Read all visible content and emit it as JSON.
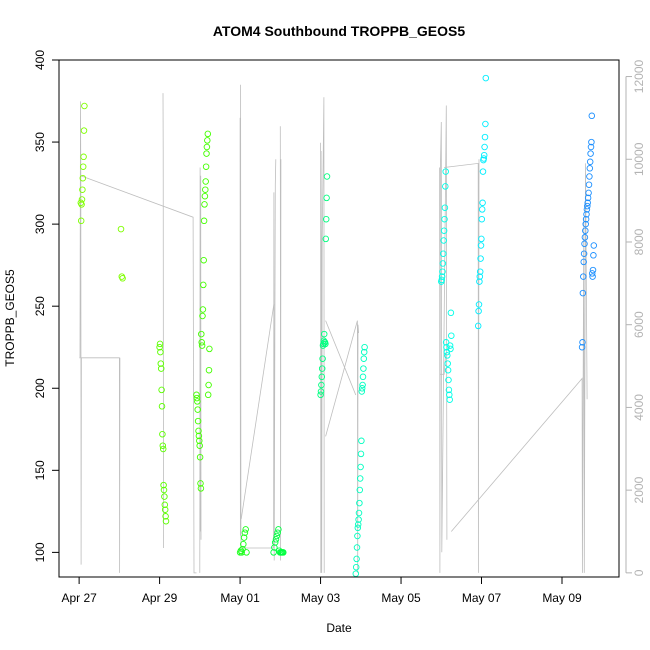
{
  "chart_data": {
    "type": "scatter",
    "title": "ATOM4 Southbound TROPPB_GEOS5",
    "xlabel": "Date",
    "ylabel": "TROPPB_GEOS5",
    "xlim": [
      "2018-04-26T12:00",
      "2018-05-10T10:00"
    ],
    "ylim": [
      85,
      400
    ],
    "y2lim": [
      -100,
      12400
    ],
    "x_ticks": [
      "Apr 27",
      "Apr 29",
      "May 01",
      "May 03",
      "May 05",
      "May 07",
      "May 09"
    ],
    "x_tick_dates": [
      "2018-04-27",
      "2018-04-29",
      "2018-05-01",
      "2018-05-03",
      "2018-05-05",
      "2018-05-07",
      "2018-05-09"
    ],
    "y_ticks": [
      100,
      150,
      200,
      250,
      300,
      350,
      400
    ],
    "y2_ticks": [
      0,
      2000,
      4000,
      6000,
      8000,
      10000,
      12000
    ],
    "y2_axis_color": "#b3b3b3",
    "marker": "open-circle",
    "flights": [
      {
        "date": "2018-04-27T01:00",
        "color": "#7FFF00",
        "points": [
          [
            0.0,
            313
          ],
          [
            0.02,
            312
          ],
          [
            0.03,
            315
          ],
          [
            0.04,
            321
          ],
          [
            0.05,
            328
          ],
          [
            0.06,
            335
          ],
          [
            0.07,
            341
          ],
          [
            0.08,
            357
          ],
          [
            0.09,
            372
          ],
          [
            0.01,
            302
          ],
          [
            1.0,
            297
          ],
          [
            1.02,
            268
          ],
          [
            1.04,
            267
          ]
        ]
      },
      {
        "date": "2018-04-29T00:00",
        "color": "#5CFF00",
        "points": [
          [
            0.0,
            225
          ],
          [
            0.01,
            227
          ],
          [
            0.02,
            222
          ],
          [
            0.03,
            215
          ],
          [
            0.04,
            212
          ],
          [
            0.05,
            199
          ],
          [
            0.06,
            189
          ],
          [
            0.07,
            172
          ],
          [
            0.08,
            165
          ],
          [
            0.09,
            163
          ],
          [
            0.1,
            141
          ],
          [
            0.11,
            138
          ],
          [
            0.12,
            134
          ],
          [
            0.13,
            129
          ],
          [
            0.14,
            126
          ],
          [
            0.15,
            122
          ],
          [
            0.16,
            119
          ]
        ]
      },
      {
        "date": "2018-04-29T22:00",
        "color": "#44FF00",
        "points": [
          [
            0.0,
            196
          ],
          [
            0.01,
            194
          ],
          [
            0.02,
            192
          ],
          [
            0.03,
            187
          ],
          [
            0.04,
            180
          ],
          [
            0.05,
            174
          ],
          [
            0.06,
            171
          ],
          [
            0.07,
            168
          ],
          [
            0.08,
            165
          ],
          [
            0.09,
            158
          ],
          [
            0.1,
            142
          ],
          [
            0.11,
            139
          ],
          [
            0.12,
            233
          ],
          [
            0.13,
            228
          ],
          [
            0.14,
            226
          ],
          [
            0.15,
            244
          ],
          [
            0.16,
            248
          ],
          [
            0.17,
            263
          ],
          [
            0.18,
            278
          ],
          [
            0.19,
            302
          ],
          [
            0.2,
            312
          ],
          [
            0.21,
            317
          ],
          [
            0.22,
            321
          ],
          [
            0.23,
            326
          ],
          [
            0.24,
            335
          ],
          [
            0.25,
            343
          ],
          [
            0.26,
            347
          ],
          [
            0.27,
            351
          ],
          [
            0.28,
            355
          ],
          [
            0.29,
            196
          ],
          [
            0.3,
            202
          ],
          [
            0.31,
            211
          ],
          [
            0.32,
            224
          ]
        ]
      },
      {
        "date": "2018-05-01T00:00",
        "color": "#1AFF1A",
        "points": [
          [
            0.0,
            100
          ],
          [
            0.02,
            101
          ],
          [
            0.04,
            100
          ],
          [
            0.06,
            102
          ],
          [
            0.08,
            105
          ],
          [
            0.1,
            109
          ],
          [
            0.12,
            112
          ],
          [
            0.14,
            114
          ],
          [
            0.16,
            100
          ]
        ]
      },
      {
        "date": "2018-05-01T20:00",
        "color": "#00FF40",
        "points": [
          [
            0.0,
            100
          ],
          [
            0.02,
            103
          ],
          [
            0.04,
            106
          ],
          [
            0.06,
            108
          ],
          [
            0.08,
            110
          ],
          [
            0.1,
            112
          ],
          [
            0.12,
            114
          ],
          [
            0.14,
            101
          ],
          [
            0.16,
            100
          ],
          [
            0.18,
            100
          ],
          [
            0.2,
            100
          ],
          [
            0.22,
            100
          ],
          [
            0.24,
            100
          ]
        ]
      },
      {
        "date": "2018-05-03T00:00",
        "color": "#00FF80",
        "points": [
          [
            0.0,
            196
          ],
          [
            0.01,
            198
          ],
          [
            0.02,
            202
          ],
          [
            0.03,
            207
          ],
          [
            0.04,
            212
          ],
          [
            0.05,
            218
          ],
          [
            0.06,
            226
          ],
          [
            0.07,
            227
          ],
          [
            0.08,
            229
          ],
          [
            0.09,
            233
          ],
          [
            0.1,
            228
          ],
          [
            0.11,
            228
          ],
          [
            0.12,
            227
          ],
          [
            0.13,
            291
          ],
          [
            0.14,
            303
          ],
          [
            0.15,
            316
          ],
          [
            0.16,
            329
          ]
        ]
      },
      {
        "date": "2018-05-03T21:00",
        "color": "#00FFC0",
        "points": [
          [
            0.0,
            87
          ],
          [
            0.01,
            91
          ],
          [
            0.02,
            96
          ],
          [
            0.03,
            103
          ],
          [
            0.04,
            110
          ],
          [
            0.05,
            115
          ],
          [
            0.06,
            117
          ],
          [
            0.07,
            120
          ],
          [
            0.08,
            124
          ],
          [
            0.09,
            130
          ],
          [
            0.1,
            138
          ],
          [
            0.11,
            145
          ],
          [
            0.12,
            152
          ],
          [
            0.13,
            160
          ],
          [
            0.14,
            168
          ],
          [
            0.15,
            198
          ],
          [
            0.16,
            200
          ],
          [
            0.17,
            202
          ],
          [
            0.18,
            207
          ],
          [
            0.19,
            212
          ],
          [
            0.2,
            218
          ],
          [
            0.21,
            222
          ],
          [
            0.22,
            225
          ]
        ]
      },
      {
        "date": "2018-05-06T00:00",
        "color": "#00FFE8",
        "points": [
          [
            0.0,
            265
          ],
          [
            0.01,
            266
          ],
          [
            0.02,
            268
          ],
          [
            0.03,
            271
          ],
          [
            0.04,
            276
          ],
          [
            0.05,
            282
          ],
          [
            0.06,
            290
          ],
          [
            0.07,
            296
          ],
          [
            0.08,
            303
          ],
          [
            0.09,
            310
          ],
          [
            0.1,
            323
          ],
          [
            0.11,
            332
          ],
          [
            0.12,
            228
          ],
          [
            0.13,
            225
          ],
          [
            0.14,
            222
          ],
          [
            0.15,
            220
          ],
          [
            0.16,
            215
          ],
          [
            0.17,
            211
          ],
          [
            0.18,
            205
          ],
          [
            0.19,
            199
          ],
          [
            0.2,
            196
          ],
          [
            0.21,
            193
          ],
          [
            0.22,
            226
          ],
          [
            0.23,
            224
          ],
          [
            0.24,
            246
          ],
          [
            0.25,
            232
          ]
        ]
      },
      {
        "date": "2018-05-06T22:00",
        "color": "#00EEFF",
        "points": [
          [
            0.0,
            238
          ],
          [
            0.01,
            247
          ],
          [
            0.02,
            251
          ],
          [
            0.03,
            265
          ],
          [
            0.04,
            268
          ],
          [
            0.05,
            271
          ],
          [
            0.06,
            279
          ],
          [
            0.07,
            287
          ],
          [
            0.08,
            291
          ],
          [
            0.09,
            303
          ],
          [
            0.1,
            309
          ],
          [
            0.11,
            313
          ],
          [
            0.12,
            332
          ],
          [
            0.13,
            339
          ],
          [
            0.14,
            340
          ],
          [
            0.15,
            342
          ],
          [
            0.16,
            347
          ],
          [
            0.17,
            353
          ],
          [
            0.18,
            361
          ],
          [
            0.19,
            389
          ]
        ]
      },
      {
        "date": "2018-05-09T12:00",
        "color": "#1E90FF",
        "points": [
          [
            0.0,
            225
          ],
          [
            0.01,
            228
          ],
          [
            0.02,
            258
          ],
          [
            0.03,
            268
          ],
          [
            0.04,
            277
          ],
          [
            0.05,
            282
          ],
          [
            0.06,
            288
          ],
          [
            0.07,
            292
          ],
          [
            0.08,
            296
          ],
          [
            0.09,
            300
          ],
          [
            0.1,
            303
          ],
          [
            0.11,
            306
          ],
          [
            0.12,
            309
          ],
          [
            0.13,
            311
          ],
          [
            0.14,
            313
          ],
          [
            0.15,
            316
          ],
          [
            0.16,
            319
          ],
          [
            0.17,
            324
          ],
          [
            0.18,
            329
          ],
          [
            0.19,
            334
          ],
          [
            0.2,
            338
          ],
          [
            0.21,
            343
          ],
          [
            0.22,
            347
          ],
          [
            0.23,
            350
          ],
          [
            0.24,
            366
          ],
          [
            0.25,
            270
          ],
          [
            0.26,
            268
          ],
          [
            0.27,
            272
          ],
          [
            0.28,
            281
          ],
          [
            0.29,
            287
          ]
        ]
      }
    ],
    "altitude_series": {
      "color": "#bebebe",
      "axis": "right",
      "segments": [
        [
          [
            "2018-04-27T00:10",
            5200
          ],
          [
            "2018-04-27T00:30",
            5200
          ],
          [
            "2018-04-27T00:50",
            11400
          ],
          [
            "2018-04-27T01:00",
            9600
          ],
          [
            "2018-04-27T01:10",
            200
          ],
          [
            "2018-04-27T01:20",
            5200
          ],
          [
            "2018-04-28T00:00",
            5200
          ],
          [
            "2018-04-28T00:10",
            0
          ],
          [
            "2018-04-28T00:20",
            5200
          ]
        ],
        [
          [
            "2018-04-27T01:00",
            9600
          ],
          [
            "2018-04-29T20:00",
            8600
          ],
          [
            "2018-04-29T20:30",
            0
          ],
          [
            "2018-04-29T22:00",
            0
          ]
        ],
        [
          [
            "2018-04-29T02:00",
            11600
          ],
          [
            "2018-04-29T02:10",
            10200
          ],
          [
            "2018-04-29T02:20",
            600
          ]
        ],
        [
          [
            "2018-04-30T00:00",
            0
          ],
          [
            "2018-04-30T00:10",
            9800
          ],
          [
            "2018-04-30T00:20",
            1000
          ],
          [
            "2018-04-30T00:30",
            9600
          ],
          [
            "2018-04-30T00:40",
            800
          ]
        ],
        [
          [
            "2018-05-01T00:00",
            11000
          ],
          [
            "2018-05-01T00:10",
            900
          ],
          [
            "2018-05-01T00:20",
            11800
          ],
          [
            "2018-05-01T00:30",
            900
          ],
          [
            "2018-05-01T00:40",
            600
          ],
          [
            "2018-05-01T20:00",
            600
          ],
          [
            "2018-05-01T20:10",
            9200
          ],
          [
            "2018-05-01T20:20",
            300
          ],
          [
            "2018-05-01T21:00",
            9400
          ],
          [
            "2018-05-01T21:20",
            10000
          ]
        ],
        [
          [
            "2018-05-01T00:40",
            1300
          ],
          [
            "2018-05-01T20:10",
            6500
          ]
        ],
        [
          [
            "2018-05-02T00:00",
            10800
          ],
          [
            "2018-05-02T00:10",
            300
          ],
          [
            "2018-05-02T00:20",
            10000
          ]
        ],
        [
          [
            "2018-05-03T00:00",
            10400
          ],
          [
            "2018-05-03T00:10",
            0
          ],
          [
            "2018-05-03T00:20",
            10200
          ],
          [
            "2018-05-03T00:30",
            7800
          ],
          [
            "2018-05-03T00:40",
            0
          ],
          [
            "2018-05-03T01:00",
            8000
          ],
          [
            "2018-05-03T02:00",
            11500
          ],
          [
            "2018-05-03T02:10",
            0
          ]
        ],
        [
          [
            "2018-05-03T03:00",
            3300
          ],
          [
            "2018-05-03T22:00",
            6100
          ],
          [
            "2018-05-03T22:10",
            0
          ],
          [
            "2018-05-03T22:20",
            6000
          ],
          [
            "2018-05-03T22:40",
            5800
          ]
        ],
        [
          [
            "2018-05-03T03:00",
            6100
          ],
          [
            "2018-05-03T21:00",
            4300
          ]
        ],
        [
          [
            "2018-05-05T23:00",
            9800
          ],
          [
            "2018-05-05T23:10",
            0
          ],
          [
            "2018-05-05T23:30",
            9800
          ],
          [
            "2018-05-06T00:00",
            10900
          ],
          [
            "2018-05-06T00:20",
            500
          ],
          [
            "2018-05-06T03:00",
            11300
          ],
          [
            "2018-05-06T03:20",
            800
          ]
        ],
        [
          [
            "2018-05-05T23:20",
            4800
          ],
          [
            "2018-05-06T01:40",
            4800
          ],
          [
            "2018-05-06T02:40",
            5300
          ]
        ],
        [
          [
            "2018-05-06T01:40",
            9800
          ],
          [
            "2018-05-06T22:00",
            9900
          ],
          [
            "2018-05-06T22:10",
            0
          ],
          [
            "2018-05-06T22:30",
            10000
          ]
        ],
        [
          [
            "2018-05-06T06:00",
            1000
          ],
          [
            "2018-05-09T12:00",
            4700
          ],
          [
            "2018-05-09T12:10",
            0
          ],
          [
            "2018-05-09T13:00",
            8600
          ],
          [
            "2018-05-09T13:20",
            0
          ],
          [
            "2018-05-09T14:00",
            9900
          ],
          [
            "2018-05-09T15:00",
            4200
          ]
        ]
      ]
    }
  }
}
